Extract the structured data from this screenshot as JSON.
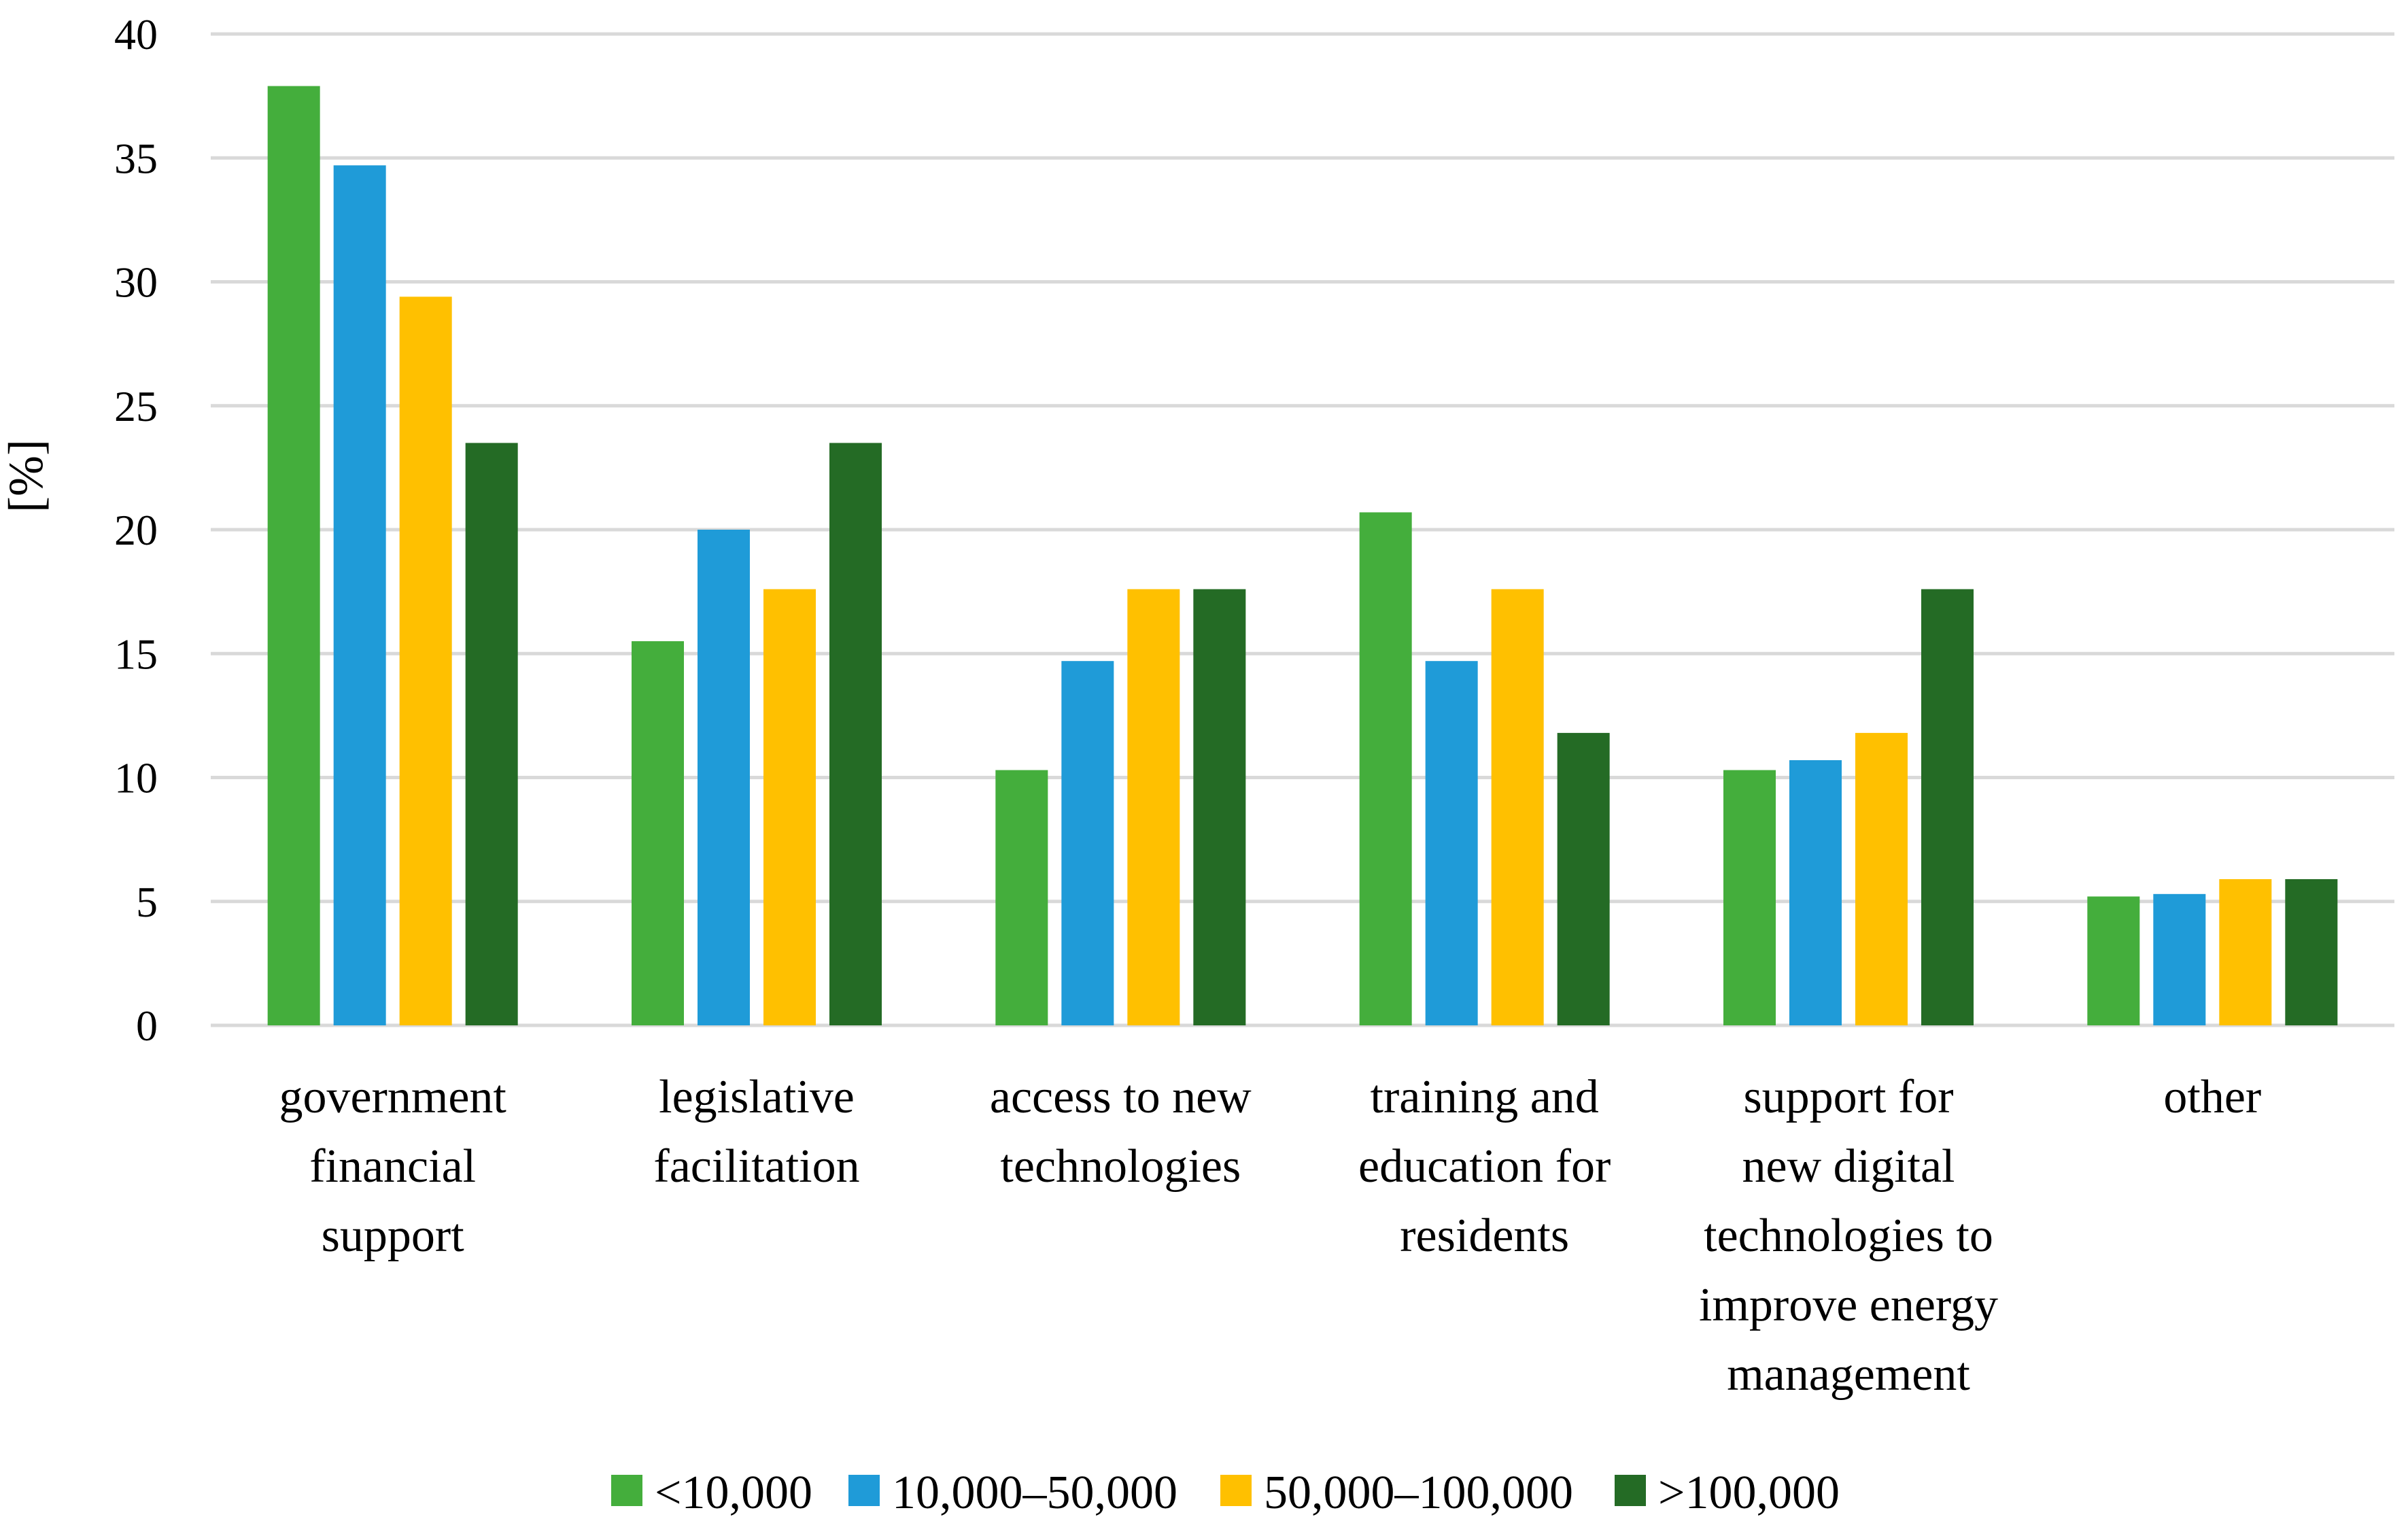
{
  "chart_data": {
    "type": "bar",
    "title": "",
    "xlabel": "",
    "ylabel": "[%]",
    "ylim": [
      0,
      40
    ],
    "yticks": [
      0,
      5,
      10,
      15,
      20,
      25,
      30,
      35,
      40
    ],
    "grid": true,
    "legend_position": "bottom",
    "categories": [
      [
        "government",
        "financial",
        "support"
      ],
      [
        "legislative",
        "facilitation"
      ],
      [
        "access to new",
        "technologies"
      ],
      [
        "training and",
        "education for",
        "residents"
      ],
      [
        "support for",
        "new digital",
        "technologies to",
        "improve energy",
        "management"
      ],
      [
        "other"
      ]
    ],
    "series": [
      {
        "name": "<10,000",
        "color": "#44ae3c",
        "values": [
          37.9,
          15.5,
          10.3,
          20.7,
          10.3,
          5.2
        ]
      },
      {
        "name": "10,000–50,000",
        "color": "#1f9bd8",
        "values": [
          34.7,
          20.0,
          14.7,
          14.7,
          10.7,
          5.3
        ]
      },
      {
        "name": "50,000–100,000",
        "color": "#ffc000",
        "values": [
          29.4,
          17.6,
          17.6,
          17.6,
          11.8,
          5.9
        ]
      },
      {
        "name": ">100,000",
        "color": "#246b25",
        "values": [
          23.5,
          23.5,
          17.6,
          11.8,
          17.6,
          5.9
        ]
      }
    ]
  }
}
